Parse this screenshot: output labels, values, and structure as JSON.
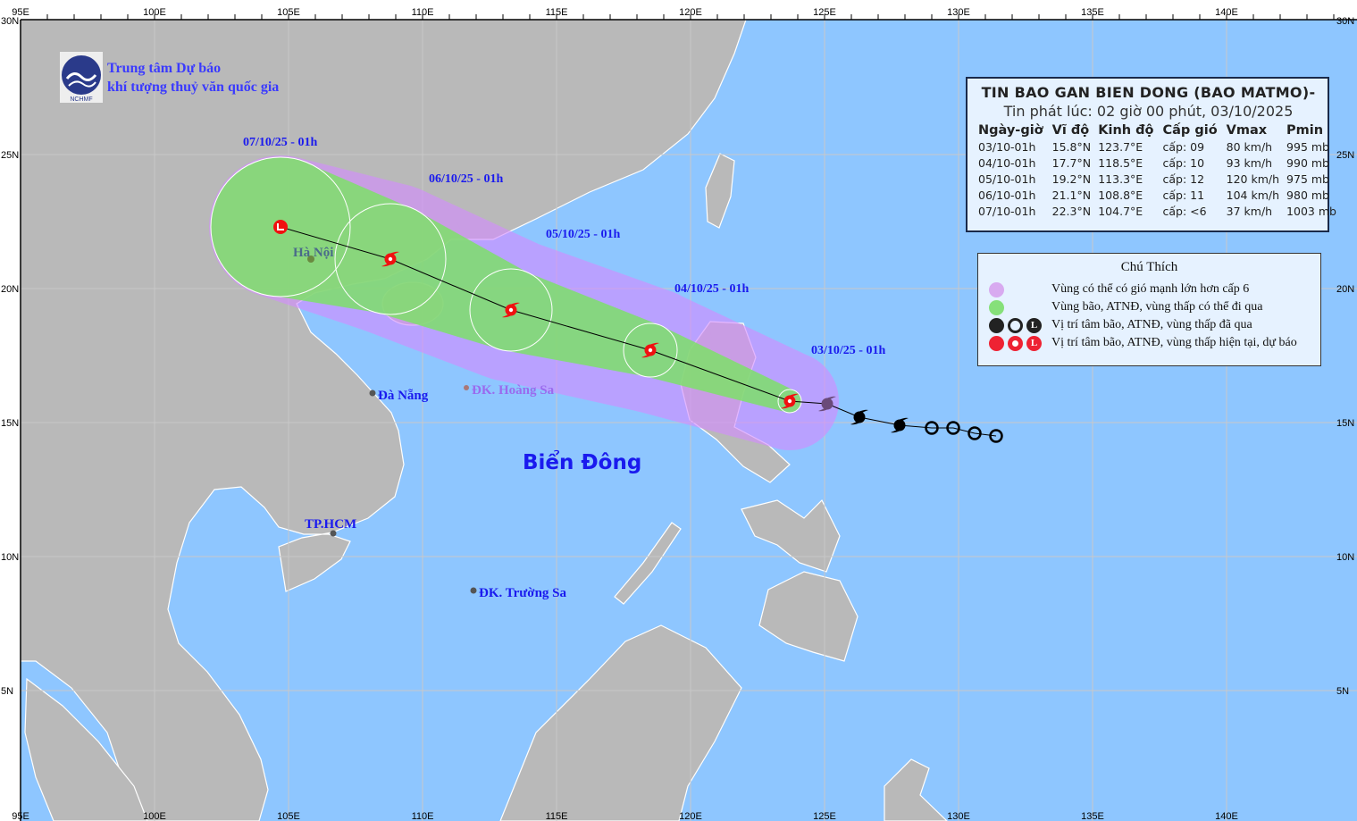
{
  "map": {
    "lon_range": [
      95,
      145
    ],
    "lat_range": [
      0,
      30
    ],
    "lon_ticks": [
      "95E",
      "100E",
      "105E",
      "110E",
      "115E",
      "120E",
      "125E",
      "130E",
      "135E",
      "140E"
    ],
    "lat_ticks": [
      "30N",
      "25N",
      "20N",
      "15N",
      "10N",
      "5N"
    ],
    "colors": {
      "sea": "#8ec6ff",
      "land": "#b9b9b9",
      "wind_zone": "#c9a0f5",
      "storm_zone": "#86e07a",
      "forecast": "#ff1a1a",
      "past": "#000000"
    }
  },
  "org": {
    "line1": "Trung tâm Dự báo",
    "line2": "khí tượng thuỷ văn quốc gia",
    "logo_text": "NCHMF"
  },
  "places": {
    "hanoi": "Hà Nội",
    "danang": "Đà Nẵng",
    "hoangsa": "ĐK. Hoàng Sa",
    "hcm": "TP.HCM",
    "truongsa": "ĐK. Trường Sa",
    "sea": "Biển Đông"
  },
  "forecast_points": [
    {
      "label": "03/10/25 - 01h",
      "lat": 15.8,
      "lon": 123.7,
      "type": "storm"
    },
    {
      "label": "04/10/25 - 01h",
      "lat": 17.7,
      "lon": 118.5,
      "type": "storm"
    },
    {
      "label": "05/10/25 - 01h",
      "lat": 19.2,
      "lon": 113.3,
      "type": "storm"
    },
    {
      "label": "06/10/25 - 01h",
      "lat": 21.1,
      "lon": 108.8,
      "type": "storm"
    },
    {
      "label": "07/10/25 - 01h",
      "lat": 22.3,
      "lon": 104.7,
      "type": "low"
    }
  ],
  "past_points": [
    {
      "lat": 15.7,
      "lon": 125.1,
      "type": "storm"
    },
    {
      "lat": 15.2,
      "lon": 126.3,
      "type": "storm"
    },
    {
      "lat": 14.9,
      "lon": 127.8,
      "type": "storm"
    },
    {
      "lat": 14.8,
      "lon": 129.0,
      "type": "depression"
    },
    {
      "lat": 14.8,
      "lon": 129.8,
      "type": "depression"
    },
    {
      "lat": 14.6,
      "lon": 130.6,
      "type": "depression"
    },
    {
      "lat": 14.5,
      "lon": 131.4,
      "type": "depression"
    }
  ],
  "info": {
    "title": "TIN BAO GAN BIEN DONG (BAO MATMO)-",
    "issued": "Tin phát lúc: 02 giờ 00 phút, 03/10/2025",
    "headers": [
      "Ngày-giờ",
      "Vĩ độ",
      "Kinh độ",
      "Cấp gió",
      "Vmax",
      "Pmin"
    ],
    "rows": [
      [
        "03/10-01h",
        "15.8°N",
        "123.7°E",
        "cấp: 09",
        "80 km/h",
        "995 mb"
      ],
      [
        "04/10-01h",
        "17.7°N",
        "118.5°E",
        "cấp: 10",
        "93 km/h",
        "990 mb"
      ],
      [
        "05/10-01h",
        "19.2°N",
        "113.3°E",
        "cấp: 12",
        "120 km/h",
        "975 mb"
      ],
      [
        "06/10-01h",
        "21.1°N",
        "108.8°E",
        "cấp: 11",
        "104 km/h",
        "980 mb"
      ],
      [
        "07/10-01h",
        "22.3°N",
        "104.7°E",
        "cấp: <6",
        "37 km/h",
        "1003 mb"
      ]
    ]
  },
  "legend": {
    "title": "Chú Thích",
    "items": [
      "Vùng có thể có gió mạnh lớn hơn cấp 6",
      "Vùng bão, ATNĐ, vùng thấp có thể đi qua",
      "Vị trí tâm bão, ATNĐ, vùng thấp đã qua",
      "Vị trí tâm bão, ATNĐ, vùng thấp hiện tại, dự báo"
    ]
  }
}
